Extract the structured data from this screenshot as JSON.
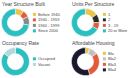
{
  "chart_data": [
    {
      "type": "pie",
      "title": "Year Structure Built",
      "categories": [
        "Before 1940",
        "1940 - 1959",
        "1960 - 1999",
        "Since 2000"
      ],
      "values": [
        10,
        8,
        10,
        72
      ],
      "colors": [
        "#e8c44a",
        "#e05c3a",
        "#888888",
        "#2bbfbf"
      ],
      "legend": "right"
    },
    {
      "type": "pie",
      "title": "Units Per Structure",
      "categories": [
        "1",
        "2",
        "3 - 19",
        "20 or More"
      ],
      "values": [
        15,
        10,
        8,
        67
      ],
      "colors": [
        "#e8c44a",
        "#2b2b2b",
        "#e05c3a",
        "#2bbfbf"
      ],
      "legend": "right"
    },
    {
      "type": "pie",
      "title": "Occupancy Rate",
      "categories": [
        "Occupied",
        "Vacant"
      ],
      "values": [
        85,
        15
      ],
      "colors": [
        "#2bbfbf",
        "#b0dada"
      ],
      "legend": "right"
    },
    {
      "type": "pie",
      "title": "Affordable Housing",
      "categories": [
        "Bla",
        "Bla2",
        "Bla3",
        "Bla4"
      ],
      "values": [
        5,
        10,
        30,
        55
      ],
      "colors": [
        "#e8c44a",
        "#c0c0c0",
        "#e05c3a",
        "#1a1a2e"
      ],
      "legend": "right"
    }
  ]
}
